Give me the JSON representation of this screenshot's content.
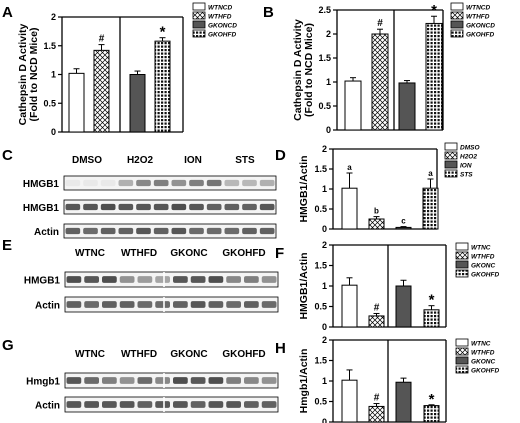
{
  "colors": {
    "black": "#000000",
    "gkBar": "#555555",
    "blot": "#303030"
  },
  "panels": {
    "A": "A",
    "B": "B",
    "C": "C",
    "D": "D",
    "E": "E",
    "F": "F",
    "G": "G",
    "H": "H"
  },
  "blots": [
    {
      "panel": "C",
      "header": [
        "DMSO",
        "H2O2",
        "ION",
        "STS"
      ],
      "rows": [
        {
          "label": "HMGB1",
          "intensity": [
            0.05,
            0.05,
            0.05,
            0.35,
            0.55,
            0.6,
            0.5,
            0.6,
            0.65,
            0.3,
            0.3,
            0.35
          ]
        },
        {
          "label": "HMGB1",
          "intensity": [
            0.8,
            0.8,
            0.85,
            0.8,
            0.8,
            0.8,
            0.85,
            0.8,
            0.75,
            0.75,
            0.75,
            0.8
          ]
        },
        {
          "label": "Actin",
          "intensity": [
            0.75,
            0.7,
            0.75,
            0.75,
            0.8,
            0.75,
            0.8,
            0.7,
            0.7,
            0.7,
            0.75,
            0.75
          ]
        }
      ]
    },
    {
      "panel": "E",
      "header": [
        "WTNC",
        "WTHFD",
        "GKONC",
        "GKOHFD"
      ],
      "rows": [
        {
          "label": "HMGB1",
          "intensity": [
            0.85,
            0.8,
            0.85,
            0.5,
            0.45,
            0.4,
            0.8,
            0.8,
            0.85,
            0.55,
            0.6,
            0.5
          ]
        },
        {
          "label": "Actin",
          "intensity": [
            0.75,
            0.7,
            0.75,
            0.75,
            0.7,
            0.7,
            0.75,
            0.8,
            0.75,
            0.7,
            0.75,
            0.7
          ]
        }
      ]
    },
    {
      "panel": "G",
      "header": [
        "WTNC",
        "WTHFD",
        "GKONC",
        "GKOHFD"
      ],
      "rows": [
        {
          "label": "Hmgb1",
          "intensity": [
            0.8,
            0.7,
            0.6,
            0.5,
            0.7,
            0.55,
            0.85,
            0.8,
            0.85,
            0.6,
            0.55,
            0.5
          ]
        },
        {
          "label": "Actin",
          "intensity": [
            0.8,
            0.8,
            0.8,
            0.8,
            0.75,
            0.8,
            0.8,
            0.75,
            0.8,
            0.8,
            0.75,
            0.75
          ]
        }
      ]
    }
  ],
  "chart_data": [
    {
      "panel": "A",
      "type": "bar",
      "ylabel": "Cathepsin D Activity\n(Fold to NCD Mice)",
      "ylim": [
        0,
        2
      ],
      "yticks": [
        "0",
        "0.5",
        "1",
        "1.5",
        "2"
      ],
      "categories": [
        "WTNCD",
        "WTHFD",
        "GKONCD",
        "GKOHFD"
      ],
      "values": [
        1.02,
        1.42,
        1.0,
        1.58
      ],
      "errors": [
        0.08,
        0.1,
        0.06,
        0.06
      ],
      "annotations": [
        "",
        "#",
        "",
        "*"
      ],
      "legend": [
        "WTNCD",
        "WTHFD",
        "GKONCD",
        "GKOHFD"
      ],
      "legend_position": "right"
    },
    {
      "panel": "B",
      "type": "bar",
      "ylabel": "Cathepsin D Activity\n(Fold to NCD Mice)",
      "ylim": [
        0,
        2.5
      ],
      "yticks": [
        "0",
        "0.5",
        "1",
        "1.5",
        "2",
        "2.5"
      ],
      "categories": [
        "WTNCD",
        "WTHFD",
        "GKONCD",
        "GKOHFD"
      ],
      "values": [
        1.02,
        2.0,
        0.98,
        2.22
      ],
      "errors": [
        0.07,
        0.1,
        0.05,
        0.15
      ],
      "annotations": [
        "",
        "#",
        "",
        "*"
      ],
      "legend": [
        "WTNCD",
        "WTHFD",
        "GKONCD",
        "GKOHFD"
      ],
      "legend_position": "right"
    },
    {
      "panel": "D",
      "type": "bar",
      "ylabel": "HMGB1/Actin",
      "ylim": [
        0,
        2
      ],
      "yticks": [
        "0",
        "0.5",
        "1",
        "1.5",
        "2"
      ],
      "categories": [
        "DMSO",
        "H2O2",
        "ION",
        "STS"
      ],
      "values": [
        1.02,
        0.25,
        0.04,
        1.02
      ],
      "errors": [
        0.38,
        0.06,
        0.02,
        0.23
      ],
      "annotations": [
        "a",
        "b",
        "c",
        "a"
      ],
      "legend": [
        "DMSO",
        "H2O2",
        "ION",
        "STS"
      ],
      "legend_position": "right"
    },
    {
      "panel": "F",
      "type": "bar",
      "ylabel": "HMGB1/Actin",
      "ylim": [
        0,
        2
      ],
      "yticks": [
        "0",
        "0.5",
        "1",
        "1.5",
        "2"
      ],
      "categories": [
        "WTNC",
        "WTHFD",
        "GKONC",
        "GKOHFD"
      ],
      "values": [
        1.02,
        0.27,
        1.0,
        0.42
      ],
      "errors": [
        0.18,
        0.06,
        0.14,
        0.1
      ],
      "annotations": [
        "",
        "#",
        "",
        "*"
      ],
      "legend": [
        "WTNC",
        "WTHFD",
        "GKONC",
        "GKOHFD"
      ],
      "legend_position": "right"
    },
    {
      "panel": "H",
      "type": "bar",
      "ylabel": "Hmgb1/Actin",
      "ylim": [
        0,
        2
      ],
      "yticks": [
        "0",
        "0.5",
        "1",
        "1.5",
        "2"
      ],
      "categories": [
        "WTNC",
        "WTHFD",
        "GKONC",
        "GKOHFD"
      ],
      "values": [
        1.02,
        0.38,
        0.97,
        0.4
      ],
      "errors": [
        0.25,
        0.07,
        0.1,
        0.02
      ],
      "annotations": [
        "",
        "#",
        "",
        "*"
      ],
      "legend": [
        "WTNC",
        "WTHFD",
        "GKONC",
        "GKOHFD"
      ],
      "legend_position": "right"
    }
  ]
}
